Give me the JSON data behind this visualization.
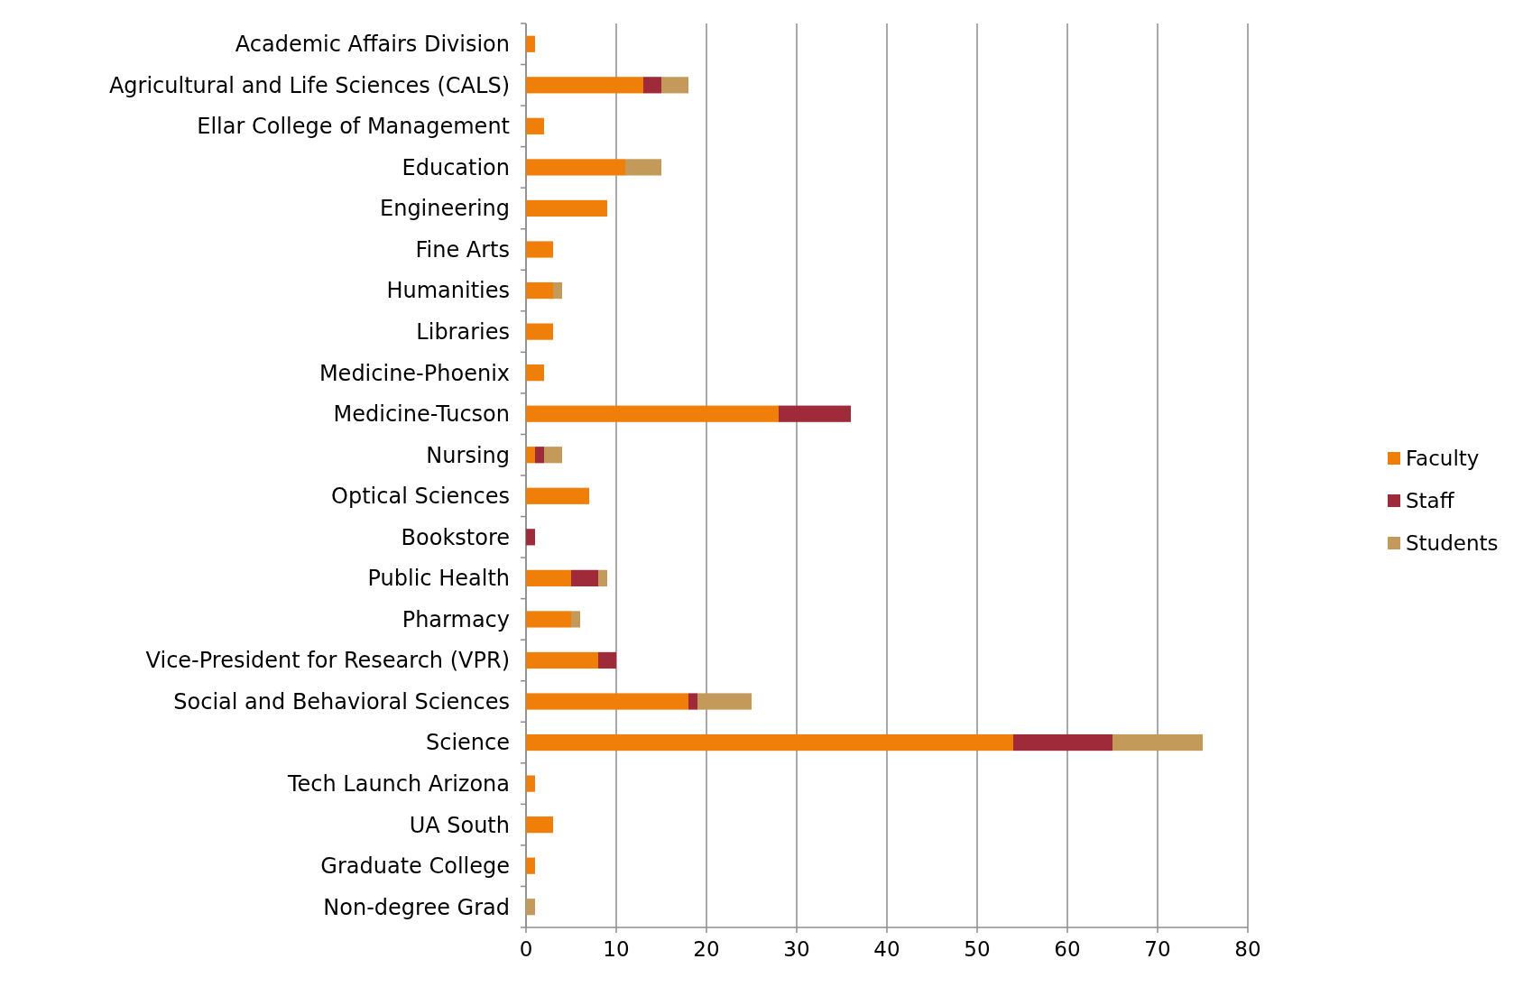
{
  "chart_data": {
    "type": "bar",
    "orientation": "horizontal",
    "stacked": true,
    "categories": [
      "Academic Affairs Division",
      "Agricultural and Life Sciences (CALS)",
      "Ellar College of Management",
      "Education",
      "Engineering",
      "Fine Arts",
      "Humanities",
      "Libraries",
      "Medicine-Phoenix",
      "Medicine-Tucson",
      "Nursing",
      "Optical Sciences",
      "Bookstore",
      "Public Health",
      "Pharmacy",
      "Vice-President for Research (VPR)",
      "Social and Behavioral Sciences",
      "Science",
      "Tech Launch Arizona",
      "UA South",
      "Graduate College",
      "Non-degree Grad"
    ],
    "series": [
      {
        "name": "Faculty",
        "color": "#f07f09",
        "values": [
          1,
          13,
          2,
          11,
          9,
          3,
          3,
          3,
          2,
          28,
          1,
          7,
          0,
          5,
          5,
          8,
          18,
          54,
          1,
          3,
          1,
          0
        ]
      },
      {
        "name": "Staff",
        "color": "#9e2a3a",
        "values": [
          0,
          2,
          0,
          0,
          0,
          0,
          0,
          0,
          0,
          8,
          1,
          0,
          1,
          3,
          0,
          2,
          1,
          11,
          0,
          0,
          0,
          0
        ]
      },
      {
        "name": "Students",
        "color": "#c49a5a",
        "values": [
          0,
          3,
          0,
          4,
          0,
          0,
          1,
          0,
          0,
          0,
          2,
          0,
          0,
          1,
          1,
          0,
          6,
          10,
          0,
          0,
          0,
          1
        ]
      }
    ],
    "xlim": [
      0,
      80
    ],
    "xticks": [
      0,
      10,
      20,
      30,
      40,
      50,
      60,
      70,
      80
    ],
    "grid": "x",
    "legend": "right"
  }
}
